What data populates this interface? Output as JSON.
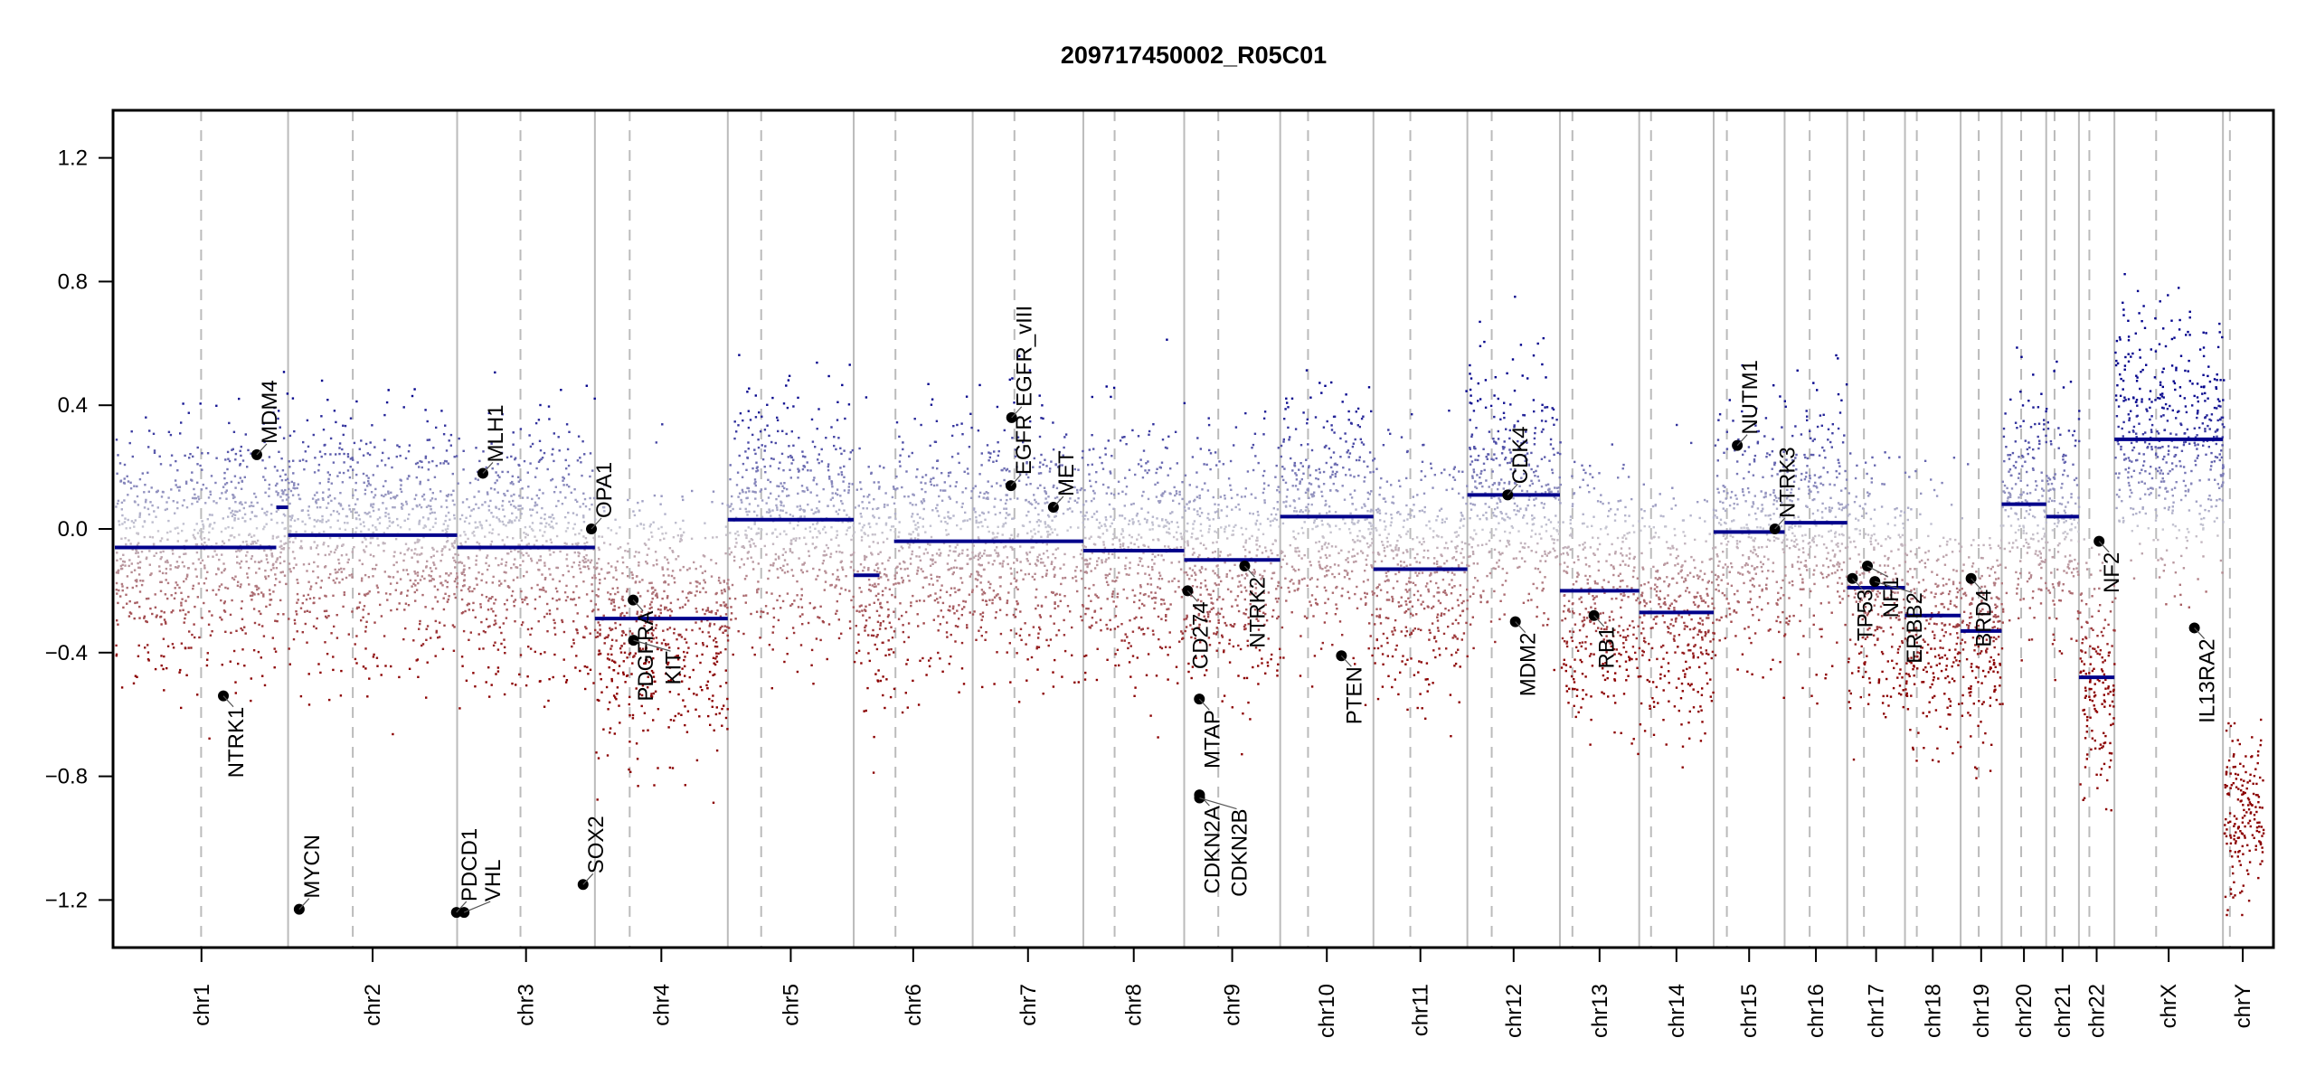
{
  "chart_data": {
    "type": "scatter",
    "title": "209717450002_R05C01",
    "xlabel": "",
    "ylabel": "",
    "ylim": [
      -1.35,
      1.35
    ],
    "yticks": [
      1.2,
      0.8,
      0.4,
      0.0,
      -0.4,
      -0.8,
      -1.2
    ],
    "ytick_labels": [
      "1.2",
      "0.8",
      "0.4",
      "0.0",
      "−0.4",
      "−0.8",
      "−1.2"
    ],
    "grid": false,
    "legend": "none",
    "colors": {
      "gain": "#00008b",
      "neutral": "#c8c8c8",
      "loss": "#8b0000",
      "segment": "#00008b",
      "gene_marker": "#000000",
      "chrom_border": "#bbbbbb",
      "centromere": "#bbbbbb"
    },
    "chromosomes": [
      {
        "name": "chr1",
        "length_mb": 249,
        "centromere_mb": 124
      },
      {
        "name": "chr2",
        "length_mb": 243,
        "centromere_mb": 93
      },
      {
        "name": "chr3",
        "length_mb": 198,
        "centromere_mb": 91
      },
      {
        "name": "chr4",
        "length_mb": 191,
        "centromere_mb": 50
      },
      {
        "name": "chr5",
        "length_mb": 181,
        "centromere_mb": 48
      },
      {
        "name": "chr6",
        "length_mb": 171,
        "centromere_mb": 60
      },
      {
        "name": "chr7",
        "length_mb": 159,
        "centromere_mb": 60
      },
      {
        "name": "chr8",
        "length_mb": 145,
        "centromere_mb": 45
      },
      {
        "name": "chr9",
        "length_mb": 138,
        "centromere_mb": 49
      },
      {
        "name": "chr10",
        "length_mb": 134,
        "centromere_mb": 40
      },
      {
        "name": "chr11",
        "length_mb": 135,
        "centromere_mb": 53
      },
      {
        "name": "chr12",
        "length_mb": 133,
        "centromere_mb": 35
      },
      {
        "name": "chr13",
        "length_mb": 114,
        "centromere_mb": 18
      },
      {
        "name": "chr14",
        "length_mb": 107,
        "centromere_mb": 17
      },
      {
        "name": "chr15",
        "length_mb": 102,
        "centromere_mb": 19
      },
      {
        "name": "chr16",
        "length_mb": 90,
        "centromere_mb": 36
      },
      {
        "name": "chr17",
        "length_mb": 83,
        "centromere_mb": 24
      },
      {
        "name": "chr18",
        "length_mb": 80,
        "centromere_mb": 17
      },
      {
        "name": "chr19",
        "length_mb": 59,
        "centromere_mb": 26
      },
      {
        "name": "chr20",
        "length_mb": 64,
        "centromere_mb": 28
      },
      {
        "name": "chr21",
        "length_mb": 47,
        "centromere_mb": 12
      },
      {
        "name": "chr22",
        "length_mb": 51,
        "centromere_mb": 15
      },
      {
        "name": "chrX",
        "length_mb": 156,
        "centromere_mb": 60
      },
      {
        "name": "chrY",
        "length_mb": 57,
        "centromere_mb": 10
      }
    ],
    "segments": [
      {
        "chrom": "chr1",
        "start_mb": 0,
        "end_mb": 232,
        "value": -0.06
      },
      {
        "chrom": "chr1",
        "start_mb": 232,
        "end_mb": 249,
        "value": 0.07
      },
      {
        "chrom": "chr2",
        "start_mb": 0,
        "end_mb": 243,
        "value": -0.02
      },
      {
        "chrom": "chr3",
        "start_mb": 0,
        "end_mb": 198,
        "value": -0.06
      },
      {
        "chrom": "chr4",
        "start_mb": 0,
        "end_mb": 191,
        "value": -0.29
      },
      {
        "chrom": "chr5",
        "start_mb": 0,
        "end_mb": 181,
        "value": 0.03
      },
      {
        "chrom": "chr6",
        "start_mb": 0,
        "end_mb": 37,
        "value": -0.15
      },
      {
        "chrom": "chr6",
        "start_mb": 58,
        "end_mb": 171,
        "value": -0.04
      },
      {
        "chrom": "chr7",
        "start_mb": 0,
        "end_mb": 159,
        "value": -0.04
      },
      {
        "chrom": "chr8",
        "start_mb": 0,
        "end_mb": 145,
        "value": -0.07
      },
      {
        "chrom": "chr9",
        "start_mb": 0,
        "end_mb": 138,
        "value": -0.1
      },
      {
        "chrom": "chr10",
        "start_mb": 0,
        "end_mb": 134,
        "value": 0.04
      },
      {
        "chrom": "chr11",
        "start_mb": 0,
        "end_mb": 135,
        "value": -0.13
      },
      {
        "chrom": "chr12",
        "start_mb": 0,
        "end_mb": 133,
        "value": 0.11
      },
      {
        "chrom": "chr13",
        "start_mb": 0,
        "end_mb": 114,
        "value": -0.2
      },
      {
        "chrom": "chr14",
        "start_mb": 0,
        "end_mb": 107,
        "value": -0.27
      },
      {
        "chrom": "chr15",
        "start_mb": 0,
        "end_mb": 102,
        "value": -0.01
      },
      {
        "chrom": "chr16",
        "start_mb": 0,
        "end_mb": 90,
        "value": 0.02
      },
      {
        "chrom": "chr17",
        "start_mb": 0,
        "end_mb": 83,
        "value": -0.19
      },
      {
        "chrom": "chr18",
        "start_mb": 0,
        "end_mb": 80,
        "value": -0.28
      },
      {
        "chrom": "chr19",
        "start_mb": 0,
        "end_mb": 59,
        "value": -0.33
      },
      {
        "chrom": "chr20",
        "start_mb": 0,
        "end_mb": 64,
        "value": 0.08
      },
      {
        "chrom": "chr21",
        "start_mb": 0,
        "end_mb": 47,
        "value": 0.04
      },
      {
        "chrom": "chr22",
        "start_mb": 0,
        "end_mb": 51,
        "value": -0.48
      },
      {
        "chrom": "chrX",
        "start_mb": 0,
        "end_mb": 156,
        "value": 0.29
      }
    ],
    "genes": [
      {
        "name": "NTRK1",
        "chrom": "chr1",
        "pos_mb": 156,
        "value": -0.54,
        "label_side": "below"
      },
      {
        "name": "MDM4",
        "chrom": "chr1",
        "pos_mb": 204,
        "value": 0.24,
        "label_side": "above"
      },
      {
        "name": "MYCN",
        "chrom": "chr2",
        "pos_mb": 16,
        "value": -1.23,
        "label_side": "above"
      },
      {
        "name": "PDCD1",
        "chrom": "chr2",
        "pos_mb": 242,
        "value": -1.24,
        "label_side": "above"
      },
      {
        "name": "VHL",
        "chrom": "chr3",
        "pos_mb": 10,
        "value": -1.24,
        "label_side": "above"
      },
      {
        "name": "MLH1",
        "chrom": "chr3",
        "pos_mb": 37,
        "value": 0.18,
        "label_side": "above"
      },
      {
        "name": "SOX2",
        "chrom": "chr3",
        "pos_mb": 181,
        "value": -1.15,
        "label_side": "above"
      },
      {
        "name": "OPA1",
        "chrom": "chr3",
        "pos_mb": 193,
        "value": 0.0,
        "label_side": "above"
      },
      {
        "name": "PDGFRA",
        "chrom": "chr4",
        "pos_mb": 55,
        "value": -0.23,
        "label_side": "below"
      },
      {
        "name": "KIT",
        "chrom": "chr4",
        "pos_mb": 55.5,
        "value": -0.36,
        "label_side": "below"
      },
      {
        "name": "EGFR",
        "chrom": "chr7",
        "pos_mb": 55,
        "value": 0.14,
        "label_side": "above"
      },
      {
        "name": "EGFR_vIII",
        "chrom": "chr7",
        "pos_mb": 56,
        "value": 0.36,
        "label_side": "above"
      },
      {
        "name": "MET",
        "chrom": "chr7",
        "pos_mb": 116,
        "value": 0.07,
        "label_side": "above"
      },
      {
        "name": "CD274",
        "chrom": "chr9",
        "pos_mb": 5,
        "value": -0.2,
        "label_side": "below"
      },
      {
        "name": "MTAP",
        "chrom": "chr9",
        "pos_mb": 21.8,
        "value": -0.55,
        "label_side": "below"
      },
      {
        "name": "CDKN2A",
        "chrom": "chr9",
        "pos_mb": 22,
        "value": -0.86,
        "label_side": "below"
      },
      {
        "name": "CDKN2B",
        "chrom": "chr9",
        "pos_mb": 22.1,
        "value": -0.87,
        "label_side": "below"
      },
      {
        "name": "NTRK2",
        "chrom": "chr9",
        "pos_mb": 87,
        "value": -0.12,
        "label_side": "below"
      },
      {
        "name": "PTEN",
        "chrom": "chr10",
        "pos_mb": 88,
        "value": -0.41,
        "label_side": "below"
      },
      {
        "name": "CDK4",
        "chrom": "chr12",
        "pos_mb": 58,
        "value": 0.11,
        "label_side": "above"
      },
      {
        "name": "MDM2",
        "chrom": "chr12",
        "pos_mb": 69,
        "value": -0.3,
        "label_side": "below"
      },
      {
        "name": "RB1",
        "chrom": "chr13",
        "pos_mb": 49,
        "value": -0.28,
        "label_side": "below"
      },
      {
        "name": "NUTM1",
        "chrom": "chr15",
        "pos_mb": 34,
        "value": 0.27,
        "label_side": "above"
      },
      {
        "name": "NTRK3",
        "chrom": "chr15",
        "pos_mb": 88,
        "value": 0.0,
        "label_side": "above"
      },
      {
        "name": "TP53",
        "chrom": "chr17",
        "pos_mb": 7.5,
        "value": -0.16,
        "label_side": "below"
      },
      {
        "name": "NF1",
        "chrom": "chr17",
        "pos_mb": 29,
        "value": -0.12,
        "label_side": "below"
      },
      {
        "name": "ERBB2",
        "chrom": "chr17",
        "pos_mb": 39.7,
        "value": -0.17,
        "label_side": "below"
      },
      {
        "name": "BRD4",
        "chrom": "chr19",
        "pos_mb": 15,
        "value": -0.16,
        "label_side": "below"
      },
      {
        "name": "NF2",
        "chrom": "chr22",
        "pos_mb": 29,
        "value": -0.04,
        "label_side": "below"
      },
      {
        "name": "IL13RA2",
        "chrom": "chrX",
        "pos_mb": 115,
        "value": -0.32,
        "label_side": "below"
      }
    ]
  }
}
